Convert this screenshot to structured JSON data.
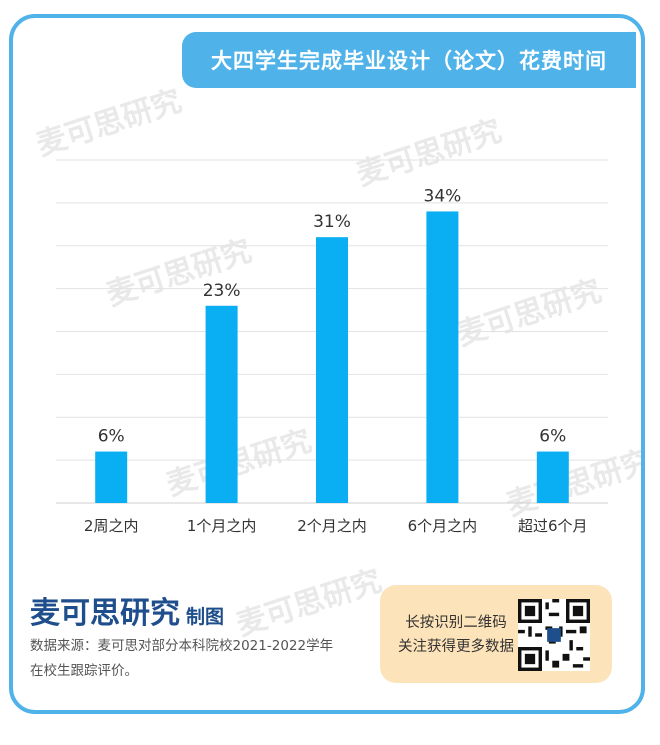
{
  "header": {
    "title": "大四学生完成毕业设计（论文）花费时间"
  },
  "watermark": {
    "text": "麦可思研究"
  },
  "footer": {
    "brand": "麦可思研究",
    "brand_suffix": "制图",
    "source_line1": "数据来源：麦可思对部分本科院校2021-2022学年",
    "source_line2": "在校生跟踪评价。",
    "qr_line1": "长按识别二维码",
    "qr_line2": "关注获得更多数据"
  },
  "colors": {
    "bar": "#0aaef3",
    "accent": "#4fb3ea",
    "brand": "#1f4e8c",
    "qr_bg": "#fde3b9"
  },
  "chart_data": {
    "type": "bar",
    "categories": [
      "2周之内",
      "1个月之内",
      "2个月之内",
      "6个月之内",
      "超过6个月"
    ],
    "values": [
      6,
      23,
      31,
      34,
      6
    ],
    "value_suffix": "%",
    "ylim": [
      0,
      40
    ],
    "grid": true,
    "title": "",
    "xlabel": "",
    "ylabel": ""
  }
}
